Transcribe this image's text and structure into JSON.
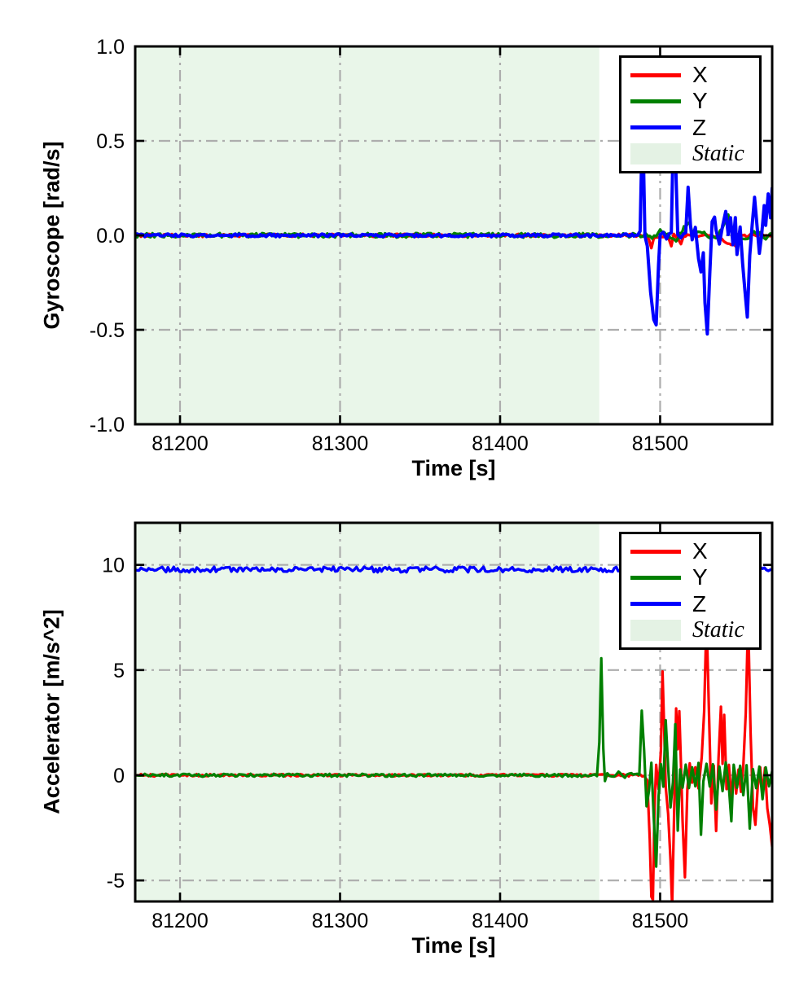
{
  "colors": {
    "x_series": "#ff0000",
    "y_series": "#008000",
    "z_series": "#0000ff",
    "static_fill": "#e9f6e9",
    "legend_patch": "#e4f2e4",
    "grid": "#adadad",
    "axis": "#000000",
    "legend_bg": "#ffffff",
    "legend_border": "#000000"
  },
  "chart_data": [
    {
      "type": "line",
      "title": "",
      "xlabel": "Time [s]",
      "ylabel": "Gyroscope [rad/s]",
      "xlim": [
        81172,
        81570
      ],
      "ylim": [
        -1.0,
        1.0
      ],
      "xticks": [
        {
          "v": 81200,
          "label": "81200"
        },
        {
          "v": 81300,
          "label": "81300"
        },
        {
          "v": 81400,
          "label": "81400"
        },
        {
          "v": 81500,
          "label": "81500"
        }
      ],
      "yticks": [
        {
          "v": 1.0,
          "label": "1.0"
        },
        {
          "v": 0.5,
          "label": "0.5"
        },
        {
          "v": 0.0,
          "label": "0.0"
        },
        {
          "v": -0.5,
          "label": "-0.5"
        },
        {
          "v": -1.0,
          "label": "-1.0"
        }
      ],
      "grid": "dash-dot",
      "static_region": [
        81172,
        81462
      ],
      "legend": {
        "position": "upper right",
        "entries": [
          {
            "label": "X",
            "swatch": "line",
            "color": "#ff0000",
            "italic": false
          },
          {
            "label": "Y",
            "swatch": "line",
            "color": "#008000",
            "italic": false
          },
          {
            "label": "Z",
            "swatch": "line",
            "color": "#0000ff",
            "italic": false
          },
          {
            "label": "Static",
            "swatch": "patch",
            "color": "#e4f2e4",
            "italic": true
          }
        ]
      },
      "series": [
        {
          "name": "X",
          "color": "#ff0000",
          "width": 3.4,
          "noise": 0.008,
          "points": [
            [
              81172,
              0
            ],
            [
              81491,
              0
            ],
            [
              81493,
              -0.02
            ],
            [
              81494.5,
              -0.07
            ],
            [
              81496,
              -0.01
            ],
            [
              81505,
              -0.01
            ],
            [
              81507,
              -0.06
            ],
            [
              81508.5,
              0
            ],
            [
              81513,
              -0.04
            ],
            [
              81514.5,
              0
            ],
            [
              81530,
              0
            ],
            [
              81547,
              -0.05
            ],
            [
              81549,
              0
            ],
            [
              81570,
              0
            ]
          ]
        },
        {
          "name": "Y",
          "color": "#008000",
          "width": 3.4,
          "noise": 0.012,
          "points": [
            [
              81172,
              0
            ],
            [
              81489,
              0
            ],
            [
              81491,
              0.02
            ],
            [
              81495,
              -0.02
            ],
            [
              81500,
              0.02
            ],
            [
              81510,
              -0.02
            ],
            [
              81518.5,
              0.08
            ],
            [
              81520.5,
              0
            ],
            [
              81525,
              0.02
            ],
            [
              81535,
              -0.02
            ],
            [
              81542.5,
              0.1
            ],
            [
              81544.5,
              0.02
            ],
            [
              81552,
              -0.03
            ],
            [
              81560,
              0.02
            ],
            [
              81566,
              -0.02
            ],
            [
              81570,
              0.01
            ]
          ]
        },
        {
          "name": "Z",
          "color": "#0000ff",
          "width": 4,
          "noise": 0.008,
          "points": [
            [
              81172,
              0
            ],
            [
              81486,
              0
            ],
            [
              81487.5,
              0.02
            ],
            [
              81488.5,
              0.45
            ],
            [
              81489.5,
              0.45
            ],
            [
              81490.5,
              0
            ],
            [
              81492,
              -0.06
            ],
            [
              81494,
              -0.3
            ],
            [
              81496,
              -0.44
            ],
            [
              81497.5,
              -0.47
            ],
            [
              81499,
              -0.15
            ],
            [
              81500,
              0
            ],
            [
              81502,
              0.02
            ],
            [
              81504,
              -0.02
            ],
            [
              81507,
              0.02
            ],
            [
              81508,
              0.45
            ],
            [
              81509.5,
              0.45
            ],
            [
              81511,
              0
            ],
            [
              81513,
              -0.02
            ],
            [
              81516,
              0.02
            ],
            [
              81517.5,
              0.26
            ],
            [
              81519,
              0.05
            ],
            [
              81520,
              -0.02
            ],
            [
              81522,
              0.05
            ],
            [
              81524,
              -0.12
            ],
            [
              81525.5,
              -0.2
            ],
            [
              81527,
              -0.1
            ],
            [
              81528,
              -0.35
            ],
            [
              81529.5,
              -0.53
            ],
            [
              81531,
              -0.2
            ],
            [
              81532.5,
              0.08
            ],
            [
              81534,
              0.1
            ],
            [
              81535,
              0.02
            ],
            [
              81537,
              -0.05
            ],
            [
              81539,
              0.05
            ],
            [
              81541,
              0.12
            ],
            [
              81542.5,
              0
            ],
            [
              81544,
              0.1
            ],
            [
              81545.5,
              -0.05
            ],
            [
              81547,
              0.1
            ],
            [
              81548,
              -0.1
            ],
            [
              81550,
              0.05
            ],
            [
              81551.5,
              -0.15
            ],
            [
              81553,
              -0.3
            ],
            [
              81554.5,
              -0.44
            ],
            [
              81556,
              -0.1
            ],
            [
              81557.5,
              0.05
            ],
            [
              81559,
              0.2
            ],
            [
              81560.5,
              0.05
            ],
            [
              81562,
              -0.1
            ],
            [
              81563.5,
              0
            ],
            [
              81565,
              0.15
            ],
            [
              81566,
              0.05
            ],
            [
              81567.5,
              0.22
            ],
            [
              81569,
              0.1
            ],
            [
              81570,
              0.25
            ]
          ]
        }
      ]
    },
    {
      "type": "line",
      "title": "",
      "xlabel": "Time [s]",
      "ylabel": "Accelerator [m/s^2]",
      "xlim": [
        81172,
        81570
      ],
      "ylim": [
        -6,
        12
      ],
      "xticks": [
        {
          "v": 81200,
          "label": "81200"
        },
        {
          "v": 81300,
          "label": "81300"
        },
        {
          "v": 81400,
          "label": "81400"
        },
        {
          "v": 81500,
          "label": "81500"
        }
      ],
      "yticks": [
        {
          "v": 10,
          "label": "10"
        },
        {
          "v": 5,
          "label": "5"
        },
        {
          "v": 0,
          "label": "0"
        },
        {
          "v": -5,
          "label": "-5"
        }
      ],
      "grid": "dash-dot",
      "static_region": [
        81172,
        81462
      ],
      "legend": {
        "position": "upper right",
        "entries": [
          {
            "label": "X",
            "swatch": "line",
            "color": "#ff0000",
            "italic": false
          },
          {
            "label": "Y",
            "swatch": "line",
            "color": "#008000",
            "italic": false
          },
          {
            "label": "Z",
            "swatch": "line",
            "color": "#0000ff",
            "italic": false
          },
          {
            "label": "Static",
            "swatch": "patch",
            "color": "#e4f2e4",
            "italic": true
          }
        ]
      },
      "series": [
        {
          "name": "X",
          "color": "#ff0000",
          "width": 3.2,
          "noise": 0.06,
          "points": [
            [
              81172,
              0
            ],
            [
              81490,
              0
            ],
            [
              81492,
              -0.3
            ],
            [
              81493.5,
              -3
            ],
            [
              81494.5,
              -5.8
            ],
            [
              81495.5,
              -5.9
            ],
            [
              81496.5,
              -1.5
            ],
            [
              81497.5,
              0.5
            ],
            [
              81499,
              -0.6
            ],
            [
              81500.5,
              1.2
            ],
            [
              81501.5,
              4.9
            ],
            [
              81502.5,
              2.2
            ],
            [
              81503.5,
              -0.5
            ],
            [
              81505,
              -1.8
            ],
            [
              81506.5,
              -4
            ],
            [
              81507.5,
              -6.3
            ],
            [
              81509,
              -1
            ],
            [
              81510,
              3.2
            ],
            [
              81511,
              1.2
            ],
            [
              81512,
              3.1
            ],
            [
              81513,
              0.5
            ],
            [
              81514,
              -2.2
            ],
            [
              81515.5,
              -4.9
            ],
            [
              81517,
              -0.6
            ],
            [
              81518.5,
              0.6
            ],
            [
              81520,
              -0.4
            ],
            [
              81522,
              0.4
            ],
            [
              81524,
              -0.6
            ],
            [
              81526,
              0.8
            ],
            [
              81527.5,
              3
            ],
            [
              81529,
              7.6
            ],
            [
              81530.5,
              3
            ],
            [
              81532,
              -1.3
            ],
            [
              81533.5,
              0.4
            ],
            [
              81535,
              -2.6
            ],
            [
              81536.5,
              0.8
            ],
            [
              81538,
              3.2
            ],
            [
              81539,
              0.6
            ],
            [
              81540,
              2.9
            ],
            [
              81541.5,
              -0.6
            ],
            [
              81543,
              0.5
            ],
            [
              81544.5,
              -1.2
            ],
            [
              81546,
              0.4
            ],
            [
              81547.5,
              -0.9
            ],
            [
              81549,
              0.3
            ],
            [
              81550.5,
              -0.8
            ],
            [
              81552,
              0.5
            ],
            [
              81553.5,
              3
            ],
            [
              81555,
              7.5
            ],
            [
              81556.5,
              2
            ],
            [
              81558,
              -1.5
            ],
            [
              81559.5,
              -2.4
            ],
            [
              81561,
              -0.5
            ],
            [
              81562.5,
              0.4
            ],
            [
              81564,
              -0.9
            ],
            [
              81565.5,
              0.3
            ],
            [
              81567,
              -1.6
            ],
            [
              81568.5,
              -2.4
            ],
            [
              81570,
              -3.4
            ]
          ]
        },
        {
          "name": "Y",
          "color": "#008000",
          "width": 3.2,
          "noise": 0.07,
          "points": [
            [
              81172,
              0
            ],
            [
              81460.5,
              0
            ],
            [
              81462,
              1.5
            ],
            [
              81463.2,
              5.6
            ],
            [
              81464.5,
              1.2
            ],
            [
              81465.5,
              -0.3
            ],
            [
              81467,
              0.1
            ],
            [
              81470,
              -0.1
            ],
            [
              81474,
              0.1
            ],
            [
              81478,
              -0.1
            ],
            [
              81482,
              0.1
            ],
            [
              81487,
              0
            ],
            [
              81488.5,
              3
            ],
            [
              81490,
              1.2
            ],
            [
              81491.5,
              -1.5
            ],
            [
              81493,
              -0.8
            ],
            [
              81494.5,
              0.6
            ],
            [
              81496,
              -2
            ],
            [
              81497.5,
              -4.3
            ],
            [
              81499,
              -1
            ],
            [
              81500.5,
              0.5
            ],
            [
              81502,
              -0.6
            ],
            [
              81503.5,
              2.6
            ],
            [
              81505,
              0.4
            ],
            [
              81506.5,
              -1.5
            ],
            [
              81508,
              -0.4
            ],
            [
              81509.5,
              2.4
            ],
            [
              81511,
              -2.6
            ],
            [
              81512.5,
              0.3
            ],
            [
              81514,
              -0.6
            ],
            [
              81516,
              0.5
            ],
            [
              81518,
              -0.6
            ],
            [
              81520,
              0.4
            ],
            [
              81522,
              -0.5
            ],
            [
              81524,
              0.6
            ],
            [
              81525.5,
              -2.8
            ],
            [
              81527,
              -0.3
            ],
            [
              81529,
              0.5
            ],
            [
              81531,
              -0.6
            ],
            [
              81533,
              0.5
            ],
            [
              81535,
              -1.6
            ],
            [
              81537,
              0.4
            ],
            [
              81539,
              -0.7
            ],
            [
              81541,
              0.6
            ],
            [
              81543,
              -0.5
            ],
            [
              81544.5,
              -2.2
            ],
            [
              81546,
              0.5
            ],
            [
              81548,
              -0.6
            ],
            [
              81550,
              0.4
            ],
            [
              81552,
              -0.9
            ],
            [
              81554,
              0.5
            ],
            [
              81556,
              -2.5
            ],
            [
              81558,
              0.3
            ],
            [
              81560,
              -0.6
            ],
            [
              81562,
              0.4
            ],
            [
              81564,
              -1.1
            ],
            [
              81566,
              0.4
            ],
            [
              81568,
              -0.5
            ],
            [
              81570,
              0.2
            ]
          ]
        },
        {
          "name": "Z",
          "color": "#0000ff",
          "width": 3.4,
          "noise": 0.13,
          "points": [
            [
              81172,
              9.78
            ],
            [
              81570,
              9.78
            ]
          ]
        }
      ]
    }
  ]
}
